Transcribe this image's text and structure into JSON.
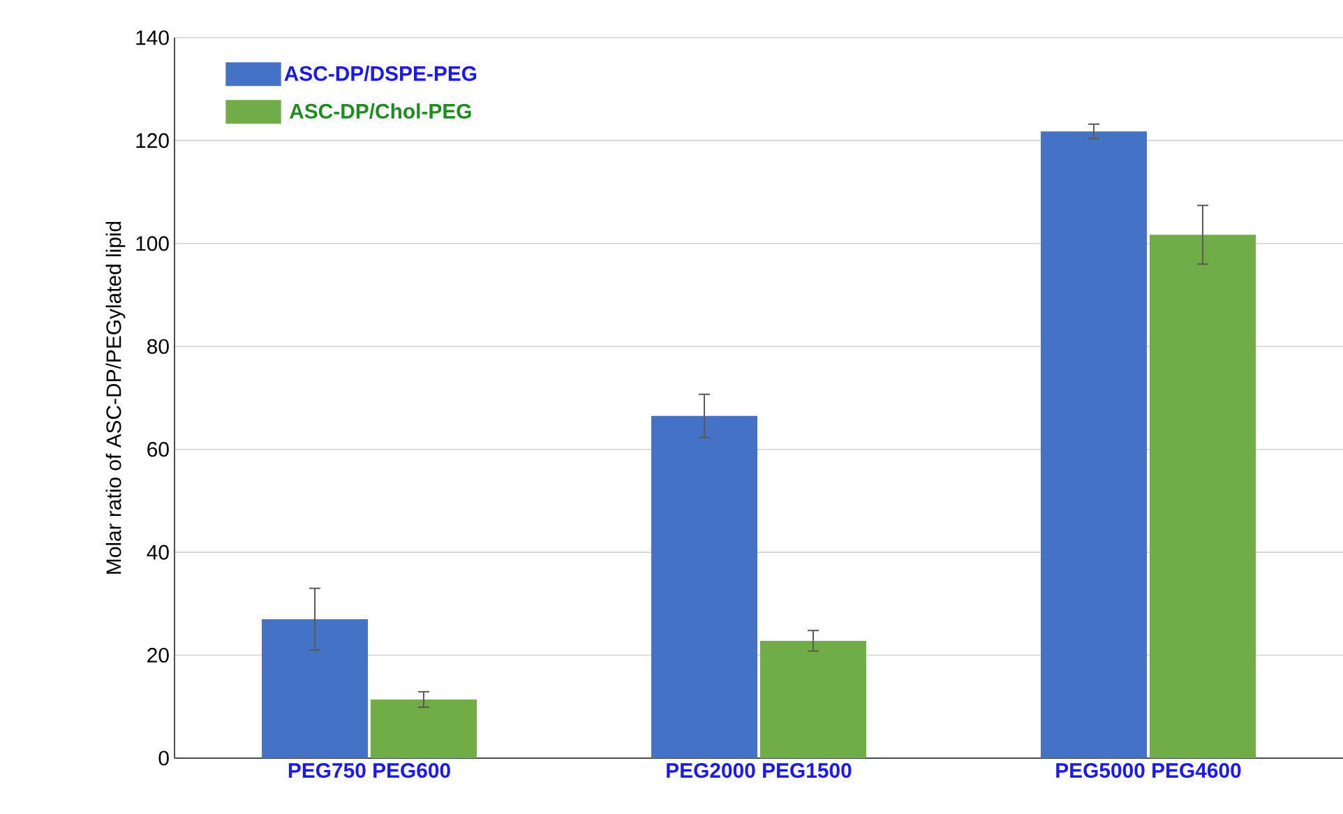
{
  "chart_data": {
    "type": "bar",
    "ylabel": "Molar ratio of ASC-DP/PEGylated lipid",
    "categories": [
      "PEG750 PEG600",
      "PEG2000 PEG1500",
      "PEG5000 PEG4600"
    ],
    "series": [
      {
        "name": "ASC-DP/DSPE-PEG",
        "color": "#4472c4",
        "values": [
          27,
          66.5,
          121.8
        ],
        "errors": [
          6,
          4.2,
          1.4
        ]
      },
      {
        "name": "ASC-DP/Chol-PEG",
        "color": "#70ad47",
        "values": [
          11.4,
          22.8,
          101.7
        ],
        "errors": [
          1.5,
          2,
          5.7
        ]
      }
    ],
    "ylim": [
      0,
      140
    ],
    "yticks": [
      0,
      20,
      40,
      60,
      80,
      100,
      120,
      140
    ],
    "grid": "y",
    "legend": "top left"
  }
}
